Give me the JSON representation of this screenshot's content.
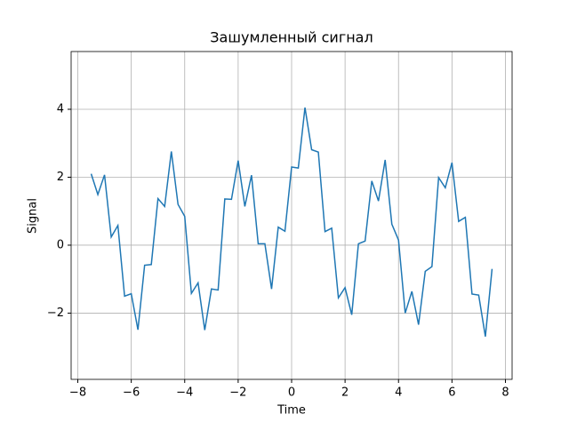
{
  "chart_data": {
    "type": "line",
    "title": "Зашумленный сигнал",
    "x_label": "Time",
    "y_label": "Signal",
    "x": [
      -7.5,
      -7.25,
      -7.0,
      -6.75,
      -6.5,
      -6.25,
      -6.0,
      -5.75,
      -5.5,
      -5.25,
      -5.0,
      -4.75,
      -4.5,
      -4.25,
      -4.0,
      -3.75,
      -3.5,
      -3.25,
      -3.0,
      -2.75,
      -2.5,
      -2.25,
      -2.0,
      -1.75,
      -1.5,
      -1.25,
      -1.0,
      -0.75,
      -0.5,
      -0.25,
      0,
      0.25,
      0.5,
      0.75,
      1.0,
      1.25,
      1.5,
      1.75,
      2.0,
      2.25,
      2.5,
      2.75,
      3.0,
      3.25,
      3.5,
      3.75,
      4.0,
      4.25,
      4.5,
      4.75,
      5.0,
      5.25,
      5.5,
      5.75,
      6.0,
      6.25,
      6.5,
      6.75,
      7.0,
      7.25,
      7.5
    ],
    "series": [
      {
        "color": "#1f77b4",
        "values": [
          2.1,
          1.49,
          2.07,
          0.24,
          0.58,
          -1.5,
          -1.43,
          -2.49,
          -0.59,
          -0.57,
          1.37,
          1.14,
          2.76,
          1.2,
          0.85,
          -1.42,
          -1.11,
          -2.5,
          -1.29,
          -1.32,
          1.36,
          1.35,
          2.49,
          1.14,
          2.06,
          0.04,
          0.04,
          -1.29,
          0.53,
          0.41,
          2.3,
          2.27,
          4.05,
          2.81,
          2.74,
          0.4,
          0.5,
          -1.55,
          -1.25,
          -2.05,
          0.04,
          0.12,
          1.89,
          1.3,
          2.51,
          0.62,
          0.15,
          -2.0,
          -1.36,
          -2.34,
          -0.77,
          -0.63,
          1.99,
          1.69,
          2.43,
          0.7,
          0.82,
          -1.44,
          -1.47,
          -2.69,
          -0.7
        ]
      }
    ],
    "xlim": [
      -8.25,
      8.25
    ],
    "ylim": [
      -3.95,
      5.7
    ],
    "xticks": [
      {
        "value": -8,
        "label": "−8"
      },
      {
        "value": -6,
        "label": "−6"
      },
      {
        "value": -4,
        "label": "−4"
      },
      {
        "value": -2,
        "label": "−2"
      },
      0,
      2,
      4,
      6,
      8
    ],
    "yticks": [
      {
        "value": -2,
        "label": "−2"
      },
      0,
      2,
      4
    ],
    "grid": true
  }
}
